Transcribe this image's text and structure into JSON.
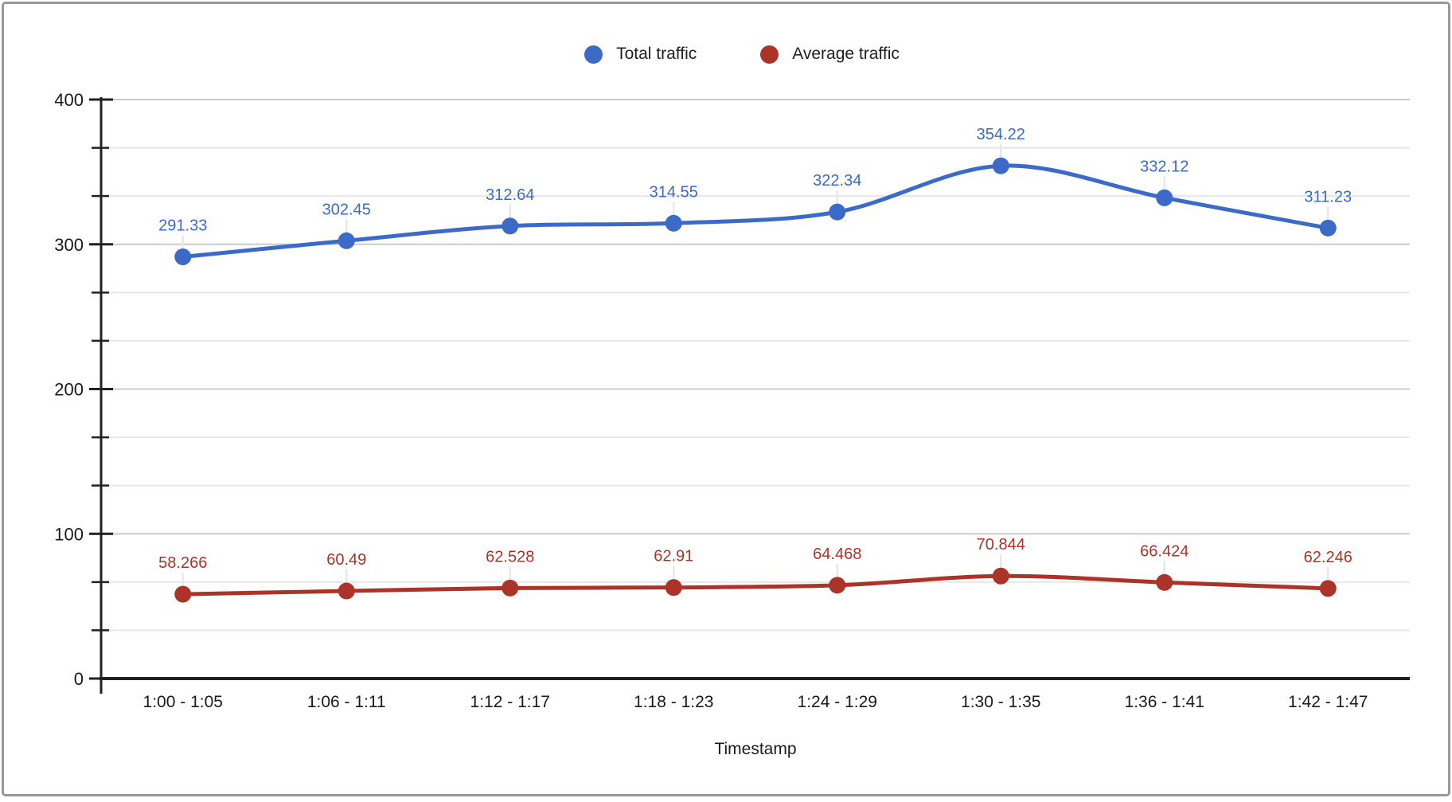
{
  "chart_data": {
    "type": "line",
    "smooth": true,
    "title": "",
    "xlabel": "Timestamp",
    "ylabel": "",
    "categories": [
      "1:00 - 1:05",
      "1:06 - 1:11",
      "1:12 - 1:17",
      "1:18 - 1:23",
      "1:24 - 1:29",
      "1:30 - 1:35",
      "1:36 - 1:41",
      "1:42 - 1:47"
    ],
    "series": [
      {
        "name": "Total traffic",
        "color": "#3b6ac7",
        "values": [
          291.33,
          302.45,
          312.64,
          314.55,
          322.34,
          354.22,
          332.12,
          311.23
        ]
      },
      {
        "name": "Average traffic",
        "color": "#ab3327",
        "values": [
          58.266,
          60.49,
          62.528,
          62.91,
          64.468,
          70.844,
          66.424,
          62.246
        ]
      }
    ],
    "ylim": [
      0,
      400
    ],
    "yticks": [
      0,
      100,
      200,
      300,
      400
    ],
    "minor_gridlines_between_major": 2,
    "grid": true,
    "legend_position": "top",
    "data_labels": true
  },
  "colors": {
    "axis": "#212121",
    "major_gridline": "#cccccc",
    "minor_gridline": "#e7e7e7",
    "label_connector": "#e8e8e8",
    "text": "#1a1a1a",
    "border": "#989898",
    "background": "#ffffff"
  }
}
